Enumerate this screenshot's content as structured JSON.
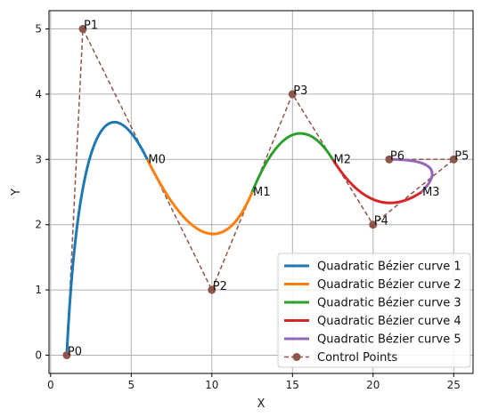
{
  "chart_data": {
    "type": "line",
    "title": "",
    "xlabel": "X",
    "ylabel": "Y",
    "xlim": [
      -0.1,
      26.2
    ],
    "ylim": [
      -0.28,
      5.28
    ],
    "xticks": [
      0,
      5,
      10,
      15,
      20,
      25
    ],
    "yticks": [
      0,
      1,
      2,
      3,
      4,
      5
    ],
    "grid": true,
    "legend_placement": "lower-right",
    "control_points": [
      {
        "label": "P0",
        "x": 1,
        "y": 0
      },
      {
        "label": "P1",
        "x": 2,
        "y": 5
      },
      {
        "label": "P2",
        "x": 10,
        "y": 1
      },
      {
        "label": "P3",
        "x": 15,
        "y": 4
      },
      {
        "label": "P4",
        "x": 20,
        "y": 2
      },
      {
        "label": "P5",
        "x": 25,
        "y": 3
      },
      {
        "label": "P6",
        "x": 21,
        "y": 3
      }
    ],
    "midpoints": [
      {
        "label": "M0",
        "x": 6,
        "y": 3
      },
      {
        "label": "M1",
        "x": 12.5,
        "y": 2.5
      },
      {
        "label": "M2",
        "x": 17.5,
        "y": 3
      },
      {
        "label": "M3",
        "x": 23,
        "y": 2.5
      }
    ],
    "series": [
      {
        "name": "Quadratic Bézier curve 1",
        "color": "#1f77b4",
        "start": [
          1,
          0
        ],
        "control": [
          2,
          5
        ],
        "end": [
          6,
          3
        ]
      },
      {
        "name": "Quadratic Bézier curve 2",
        "color": "#ff7f0e",
        "start": [
          6,
          3
        ],
        "control": [
          10,
          1
        ],
        "end": [
          12.5,
          2.5
        ]
      },
      {
        "name": "Quadratic Bézier curve 3",
        "color": "#2ca02c",
        "start": [
          12.5,
          2.5
        ],
        "control": [
          15,
          4
        ],
        "end": [
          17.5,
          3
        ]
      },
      {
        "name": "Quadratic Bézier curve 4",
        "color": "#d62728",
        "start": [
          17.5,
          3
        ],
        "control": [
          20,
          2
        ],
        "end": [
          23,
          2.5
        ]
      },
      {
        "name": "Quadratic Bézier curve 5",
        "color": "#9467bd",
        "start": [
          23,
          2.5
        ],
        "control": [
          25,
          3
        ],
        "end": [
          21,
          3
        ]
      }
    ],
    "control_series": {
      "name": "Control Points",
      "color": "#8c564b"
    }
  }
}
